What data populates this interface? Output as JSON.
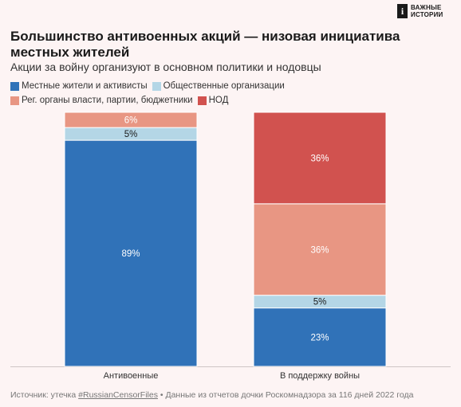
{
  "brand": {
    "mark": "i",
    "line1": "ВАЖНЫЕ",
    "line2": "ИСТОРИИ"
  },
  "chart_data": {
    "type": "bar",
    "stacked": true,
    "title": "Большинство антивоенных акций — низовая инициатива местных жителей",
    "subtitle": "Акции за войну организуют в основном политики и нодовцы",
    "categories": [
      "Антивоенные",
      "В поддержку войны"
    ],
    "series": [
      {
        "name": "Местные жители и активисты",
        "color": "#3072b8",
        "values": [
          89,
          23
        ],
        "labels": [
          "89%",
          "23%"
        ]
      },
      {
        "name": "Общественные организации",
        "color": "#b4d6e6",
        "values": [
          5,
          5
        ],
        "labels": [
          "5%",
          "5%"
        ]
      },
      {
        "name": "Рег. органы власти, партии, бюджетники",
        "color": "#e89683",
        "values": [
          6,
          36
        ],
        "labels": [
          "6%",
          "36%"
        ]
      },
      {
        "name": "НОД",
        "color": "#d1524f",
        "values": [
          0,
          36
        ],
        "labels": [
          "",
          "36%"
        ]
      }
    ],
    "ylim": [
      0,
      100
    ],
    "legend": "top-left"
  },
  "source": {
    "prefix": "Источник: утечка ",
    "tag": "#RussianCensorFiles",
    "suffix": " • Данные из отчетов дочки Роскомнадзора за 116 дней 2022 года"
  }
}
